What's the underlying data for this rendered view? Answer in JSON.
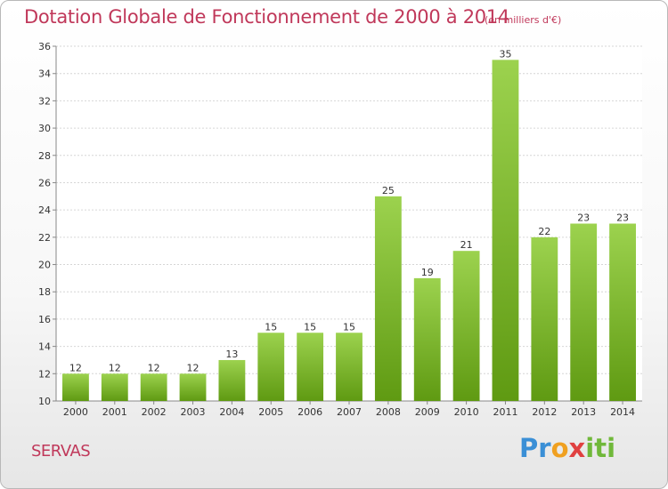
{
  "chart_data": {
    "type": "bar",
    "title": "Dotation Globale de Fonctionnement de 2000 à 2014",
    "subtitle": "(en milliers d'€)",
    "categories": [
      "2000",
      "2001",
      "2002",
      "2003",
      "2004",
      "2005",
      "2006",
      "2007",
      "2008",
      "2009",
      "2010",
      "2011",
      "2012",
      "2013",
      "2014"
    ],
    "values": [
      12,
      12,
      12,
      12,
      13,
      15,
      15,
      15,
      25,
      19,
      21,
      35,
      22,
      23,
      23
    ],
    "ylim": [
      10,
      36
    ],
    "yticks": [
      10,
      12,
      14,
      16,
      18,
      20,
      22,
      24,
      26,
      28,
      30,
      32,
      34,
      36
    ],
    "grid": true,
    "bar_color_top": "#9cd24e",
    "bar_color_bottom": "#5f9a12"
  },
  "footer": {
    "place": "SERVAS",
    "logo_letters": [
      {
        "ch": "P",
        "color": "#3a8fd6"
      },
      {
        "ch": "r",
        "color": "#3a8fd6"
      },
      {
        "ch": "o",
        "color": "#f0a020"
      },
      {
        "ch": "x",
        "color": "#e04040"
      },
      {
        "ch": "i",
        "color": "#70b83a"
      },
      {
        "ch": "t",
        "color": "#70b83a"
      },
      {
        "ch": "i",
        "color": "#70b83a"
      }
    ]
  }
}
